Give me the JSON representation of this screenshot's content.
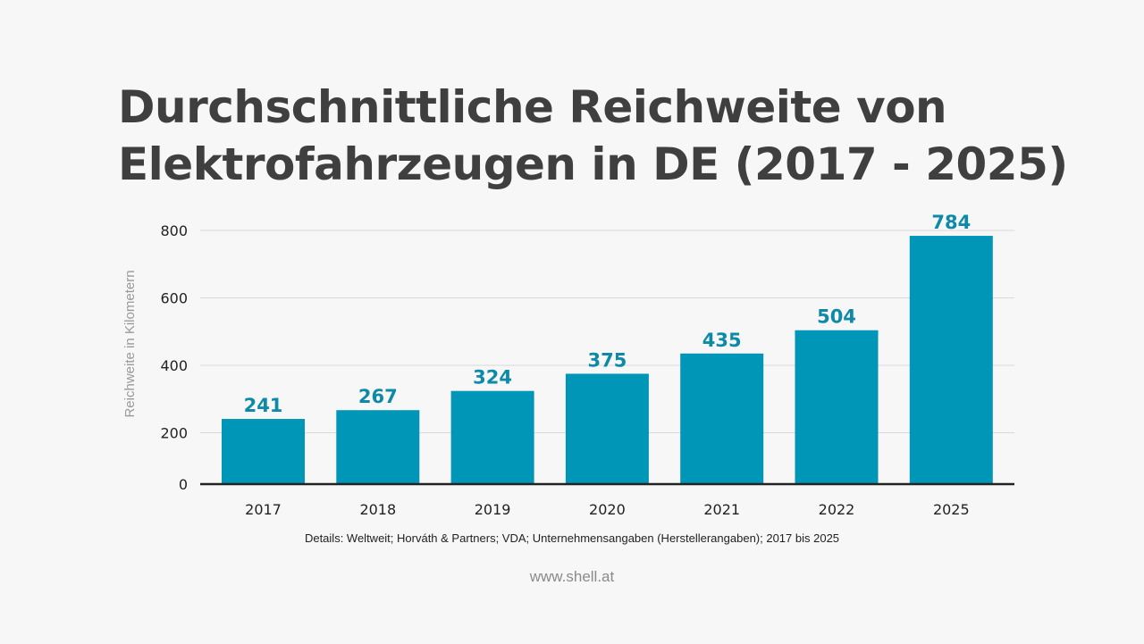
{
  "chart_data": {
    "type": "bar",
    "title": "Durchschnittliche Reichweite von Elektrofahrzeugen in DE (2017 - 2025)",
    "categories": [
      "2017",
      "2018",
      "2019",
      "2020",
      "2021",
      "2022",
      "2025"
    ],
    "values": [
      241,
      267,
      324,
      375,
      435,
      504,
      784
    ],
    "xlabel": "",
    "ylabel": "Reichweite in Kilometern",
    "ylim": [
      0,
      800
    ],
    "yticks": [
      0,
      200,
      400,
      600,
      800
    ],
    "grid": true,
    "legend": "none",
    "bar_color": "#0096b8",
    "label_color": "#0d8aa8"
  },
  "footnote": "Details: Weltweit; Horváth & Partners; VDA; Unternehmensangaben (Herstellerangaben); 2017 bis 2025",
  "source": "www.shell.at"
}
